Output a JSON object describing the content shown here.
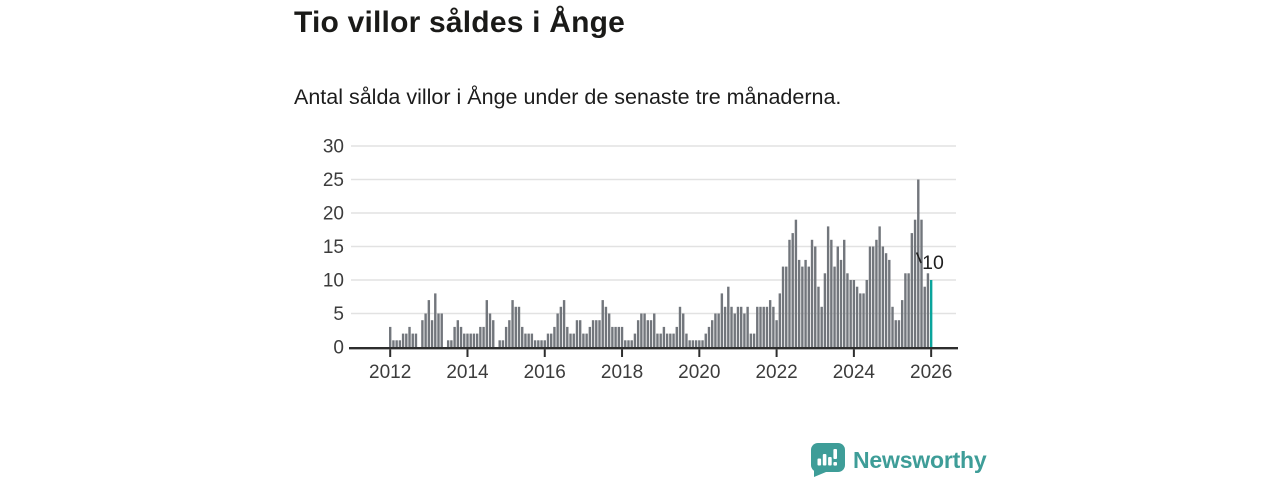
{
  "header": {
    "title": "Tio villor såldes i Ånge",
    "subtitle": "Antal sålda villor i Ånge under de senaste tre månaderna."
  },
  "chart_data": {
    "type": "bar",
    "title": "Tio villor såldes i Ånge",
    "subtitle": "Antal sålda villor i Ånge under de senaste tre månaderna.",
    "frequency": "monthly",
    "x_start": "2012-01",
    "x_end": "2026-01",
    "ylim": [
      0,
      30
    ],
    "grid": "horizontal",
    "y_ticks": [
      0,
      5,
      10,
      15,
      20,
      25,
      30
    ],
    "x_tick_years": [
      2012,
      2014,
      2016,
      2018,
      2020,
      2022,
      2024,
      2026
    ],
    "values": [
      3,
      1,
      1,
      1,
      2,
      2,
      3,
      2,
      2,
      0,
      4,
      5,
      7,
      4,
      8,
      5,
      5,
      0,
      1,
      1,
      3,
      4,
      3,
      2,
      2,
      2,
      2,
      2,
      3,
      3,
      7,
      5,
      4,
      0,
      1,
      1,
      3,
      4,
      7,
      6,
      6,
      3,
      2,
      2,
      2,
      1,
      1,
      1,
      1,
      2,
      2,
      3,
      5,
      6,
      7,
      3,
      2,
      2,
      4,
      4,
      2,
      2,
      3,
      4,
      4,
      4,
      7,
      6,
      5,
      3,
      3,
      3,
      3,
      1,
      1,
      1,
      2,
      4,
      5,
      5,
      4,
      4,
      5,
      2,
      2,
      3,
      2,
      2,
      2,
      3,
      6,
      5,
      2,
      1,
      1,
      1,
      1,
      1,
      2,
      3,
      4,
      5,
      5,
      8,
      6,
      9,
      6,
      5,
      6,
      6,
      5,
      6,
      2,
      2,
      6,
      6,
      6,
      6,
      7,
      6,
      4,
      8,
      12,
      12,
      16,
      17,
      19,
      13,
      12,
      13,
      12,
      16,
      15,
      9,
      6,
      11,
      18,
      16,
      12,
      15,
      13,
      16,
      11,
      10,
      10,
      9,
      8,
      8,
      10,
      15,
      15,
      16,
      18,
      15,
      14,
      13,
      6,
      4,
      4,
      7,
      11,
      11,
      17,
      19,
      25,
      19,
      9,
      11,
      10
    ],
    "highlight_last": true,
    "annotation": {
      "text": "10",
      "target": "last-bar"
    },
    "legend": "none"
  },
  "footer": {
    "brand": "Newsworthy"
  },
  "colors": {
    "bar": "#72767c",
    "highlight": "#0aa49c",
    "grid": "#e2e2e2",
    "axis": "#2d2d2d",
    "axis_text": "#3c3c3c",
    "annotation_text": "#1f1f1f",
    "brand": "#3e9d98",
    "background": "#ffffff"
  }
}
